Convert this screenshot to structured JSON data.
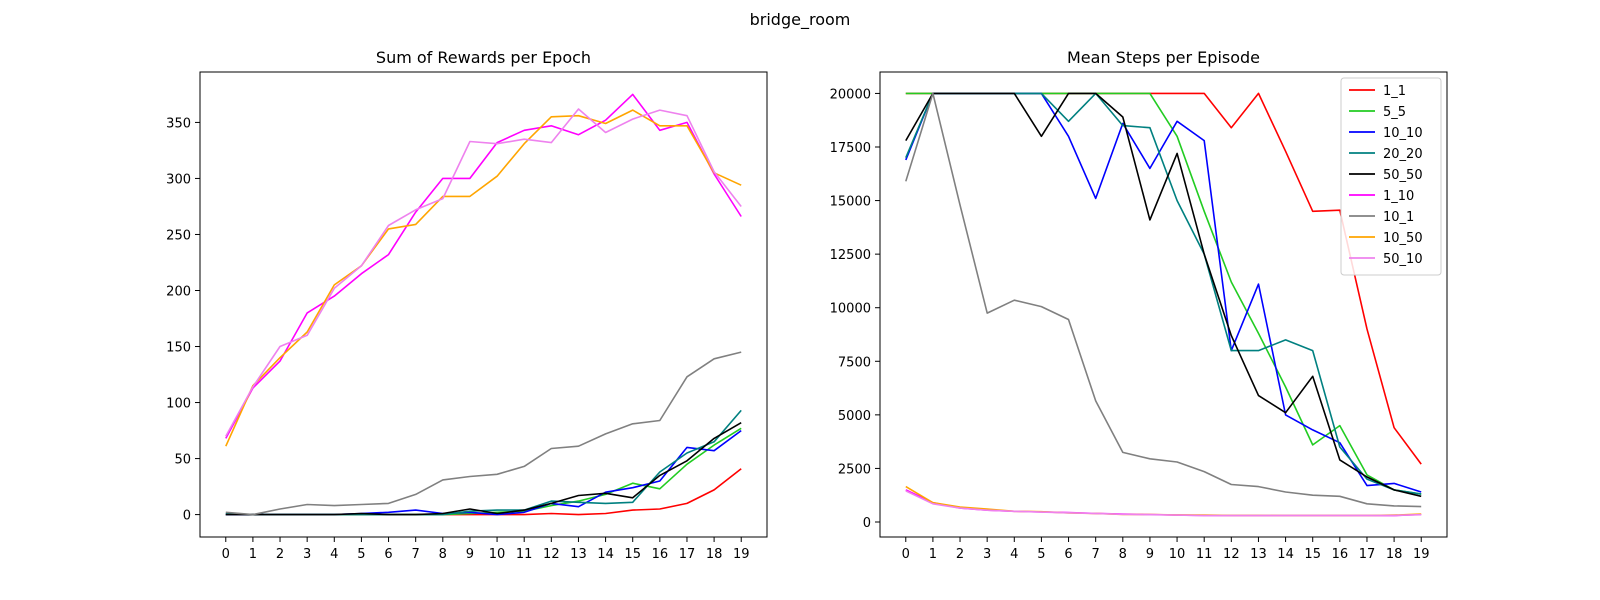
{
  "figure": {
    "suptitle": "bridge_room"
  },
  "colors": {
    "1_1": "#ff0000",
    "5_5": "#22cc22",
    "10_10": "#0000ff",
    "20_20": "#008080",
    "50_50": "#000000",
    "1_10": "#ff00ff",
    "10_1": "#808080",
    "10_50": "#ffa500",
    "50_10": "#ee82ee"
  },
  "chart_data": [
    {
      "type": "line",
      "title": "Sum of Rewards per Epoch",
      "xlabel": "",
      "ylabel": "",
      "x": [
        0,
        1,
        2,
        3,
        4,
        5,
        6,
        7,
        8,
        9,
        10,
        11,
        12,
        13,
        14,
        15,
        16,
        17,
        18,
        19
      ],
      "ylim": [
        -20,
        395
      ],
      "yticks": [
        0,
        50,
        100,
        150,
        200,
        250,
        300,
        350
      ],
      "grid": false,
      "series": [
        {
          "name": "1_1",
          "values": [
            0,
            0,
            0,
            0,
            0,
            0,
            0,
            0,
            0,
            0,
            0,
            0,
            1,
            0,
            1,
            4,
            5,
            10,
            22,
            41
          ]
        },
        {
          "name": "5_5",
          "values": [
            0,
            0,
            0,
            0,
            0,
            0,
            0,
            0,
            0,
            1,
            2,
            3,
            8,
            12,
            18,
            28,
            23,
            45,
            62,
            77
          ]
        },
        {
          "name": "10_10",
          "values": [
            0,
            0,
            0,
            0,
            0,
            1,
            2,
            4,
            1,
            2,
            0,
            2,
            10,
            7,
            20,
            24,
            30,
            60,
            57,
            75
          ]
        },
        {
          "name": "20_20",
          "values": [
            1,
            0,
            0,
            0,
            0,
            0,
            0,
            0,
            0,
            3,
            4,
            4,
            12,
            11,
            10,
            11,
            38,
            55,
            65,
            93
          ]
        },
        {
          "name": "50_50",
          "values": [
            0,
            0,
            0,
            0,
            0,
            1,
            0,
            0,
            1,
            5,
            1,
            4,
            10,
            17,
            19,
            15,
            35,
            48,
            68,
            82
          ]
        },
        {
          "name": "1_10",
          "values": [
            68,
            113,
            137,
            180,
            195,
            215,
            232,
            270,
            300,
            300,
            332,
            343,
            347,
            339,
            352,
            375,
            343,
            350,
            304,
            266
          ]
        },
        {
          "name": "10_1",
          "values": [
            2,
            0,
            5,
            9,
            8,
            9,
            10,
            18,
            31,
            34,
            36,
            43,
            59,
            61,
            72,
            81,
            84,
            123,
            139,
            145
          ]
        },
        {
          "name": "10_50",
          "values": [
            61,
            115,
            140,
            163,
            205,
            222,
            255,
            259,
            284,
            284,
            302,
            331,
            355,
            356,
            349,
            361,
            347,
            347,
            305,
            294
          ]
        },
        {
          "name": "50_10",
          "values": [
            70,
            114,
            150,
            160,
            202,
            222,
            258,
            272,
            282,
            333,
            331,
            335,
            332,
            362,
            341,
            353,
            361,
            356,
            306,
            275
          ]
        }
      ]
    },
    {
      "type": "line",
      "title": "Mean Steps per Episode",
      "xlabel": "",
      "ylabel": "",
      "x": [
        0,
        1,
        2,
        3,
        4,
        5,
        6,
        7,
        8,
        9,
        10,
        11,
        12,
        13,
        14,
        15,
        16,
        17,
        18,
        19
      ],
      "ylim": [
        -700,
        21000
      ],
      "yticks": [
        0,
        2500,
        5000,
        7500,
        10000,
        12500,
        15000,
        17500,
        20000
      ],
      "grid": false,
      "legend": "top-right",
      "series": [
        {
          "name": "1_1",
          "values": [
            20000,
            20000,
            20000,
            20000,
            20000,
            20000,
            20000,
            20000,
            20000,
            20000,
            20000,
            20000,
            18400,
            20000,
            17300,
            14500,
            14550,
            9000,
            4400,
            2700
          ]
        },
        {
          "name": "5_5",
          "values": [
            20000,
            20000,
            20000,
            20000,
            20000,
            20000,
            20000,
            20000,
            20000,
            20000,
            18000,
            14500,
            11200,
            8800,
            6300,
            3600,
            4500,
            2200,
            1500,
            1300
          ]
        },
        {
          "name": "10_10",
          "values": [
            16900,
            20000,
            20000,
            20000,
            20000,
            20000,
            18000,
            15100,
            18600,
            16500,
            18700,
            17800,
            8000,
            11100,
            5000,
            4300,
            3700,
            1700,
            1800,
            1400
          ]
        },
        {
          "name": "20_20",
          "values": [
            17000,
            20000,
            20000,
            20000,
            20000,
            20000,
            18700,
            20000,
            18500,
            18400,
            15000,
            12500,
            8000,
            8000,
            8500,
            8000,
            3500,
            2000,
            1500,
            1300
          ]
        },
        {
          "name": "50_50",
          "values": [
            17800,
            20000,
            20000,
            20000,
            20000,
            18000,
            20000,
            20000,
            18900,
            14100,
            17200,
            12500,
            8700,
            5900,
            5100,
            6800,
            2900,
            2100,
            1500,
            1200
          ]
        },
        {
          "name": "1_10",
          "values": [
            1500,
            900,
            650,
            550,
            500,
            470,
            440,
            400,
            370,
            350,
            320,
            310,
            300,
            300,
            300,
            300,
            300,
            300,
            300,
            350
          ]
        },
        {
          "name": "10_1",
          "values": [
            15900,
            20000,
            14800,
            9750,
            10350,
            10050,
            9450,
            5650,
            3250,
            2950,
            2800,
            2350,
            1750,
            1650,
            1400,
            1250,
            1200,
            850,
            750,
            720
          ]
        },
        {
          "name": "10_50",
          "values": [
            1650,
            900,
            700,
            600,
            500,
            480,
            420,
            400,
            350,
            350,
            330,
            320,
            310,
            310,
            300,
            300,
            300,
            300,
            320,
            370
          ]
        },
        {
          "name": "50_10",
          "values": [
            1450,
            850,
            650,
            550,
            500,
            460,
            430,
            400,
            360,
            340,
            320,
            300,
            300,
            300,
            300,
            300,
            300,
            300,
            310,
            340
          ]
        }
      ]
    }
  ]
}
